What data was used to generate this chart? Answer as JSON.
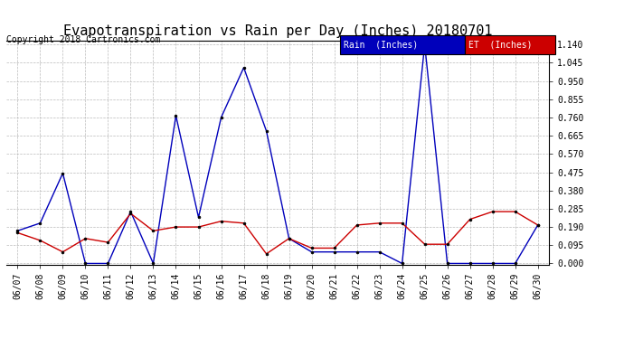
{
  "title": "Evapotranspiration vs Rain per Day (Inches) 20180701",
  "copyright": "Copyright 2018 Cartronics.com",
  "dates": [
    "06/07",
    "06/08",
    "06/09",
    "06/10",
    "06/11",
    "06/12",
    "06/13",
    "06/14",
    "06/15",
    "06/16",
    "06/17",
    "06/18",
    "06/19",
    "06/20",
    "06/21",
    "06/22",
    "06/23",
    "06/24",
    "06/25",
    "06/26",
    "06/27",
    "06/28",
    "06/29",
    "06/30"
  ],
  "rain": [
    0.17,
    0.21,
    0.47,
    0.0,
    0.0,
    0.27,
    0.0,
    0.77,
    0.24,
    0.76,
    1.02,
    0.69,
    0.13,
    0.06,
    0.06,
    0.06,
    0.06,
    0.0,
    1.14,
    0.0,
    0.0,
    0.0,
    0.0,
    0.2
  ],
  "et": [
    0.16,
    0.12,
    0.06,
    0.13,
    0.11,
    0.26,
    0.17,
    0.19,
    0.19,
    0.22,
    0.21,
    0.05,
    0.13,
    0.08,
    0.08,
    0.2,
    0.21,
    0.21,
    0.1,
    0.1,
    0.23,
    0.27,
    0.27,
    0.2
  ],
  "rain_color": "#0000bb",
  "et_color": "#cc0000",
  "background_color": "#ffffff",
  "grid_color": "#bbbbbb",
  "ylim_min": 0.0,
  "ylim_max": 1.14,
  "yticks": [
    0.0,
    0.095,
    0.19,
    0.285,
    0.38,
    0.475,
    0.57,
    0.665,
    0.76,
    0.855,
    0.95,
    1.045,
    1.14
  ],
  "title_fontsize": 11,
  "copyright_fontsize": 7,
  "tick_fontsize": 7,
  "legend_rain_label": "Rain  (Inches)",
  "legend_et_label": "ET  (Inches)"
}
